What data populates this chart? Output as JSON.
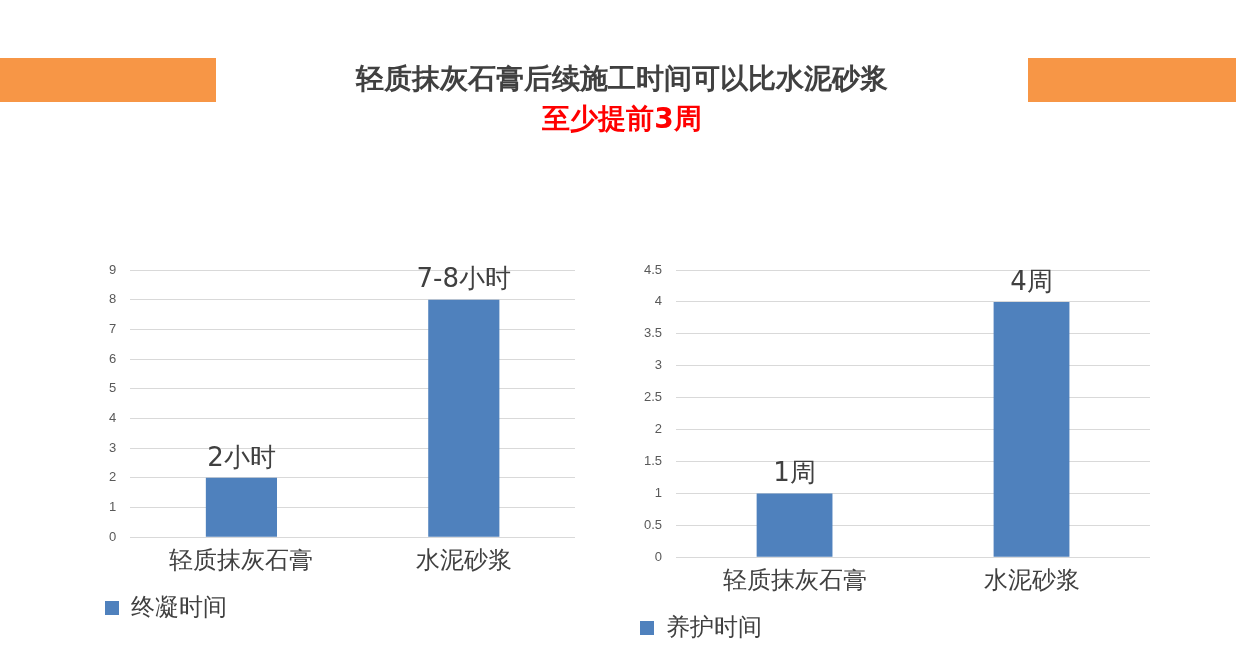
{
  "chart_data": [
    {
      "type": "bar",
      "title": "轻质抹灰石膏后续施工时间可以比水泥砂浆",
      "subtitle": "至少提前3周",
      "categories": [
        "轻质抹灰石膏",
        "水泥砂浆"
      ],
      "series": [
        {
          "name": "终凝时间",
          "color": "#4f81bd",
          "values": [
            2,
            8
          ],
          "value_labels": [
            "2小时",
            "7-8小时"
          ]
        }
      ],
      "ylim": [
        0,
        9
      ],
      "yticks": [
        0,
        1,
        2,
        3,
        4,
        5,
        6,
        7,
        8,
        9
      ],
      "grid": "y",
      "legend": "bottom"
    },
    {
      "type": "bar",
      "categories": [
        "轻质抹灰石膏",
        "水泥砂浆"
      ],
      "series": [
        {
          "name": "养护时间",
          "color": "#4f81bd",
          "values": [
            1,
            4
          ],
          "value_labels": [
            "1周",
            "4周"
          ]
        }
      ],
      "ylim": [
        0,
        4.5
      ],
      "yticks": [
        0,
        0.5,
        1,
        1.5,
        2,
        2.5,
        3,
        3.5,
        4,
        4.5
      ],
      "grid": "y",
      "legend": "bottom"
    }
  ]
}
